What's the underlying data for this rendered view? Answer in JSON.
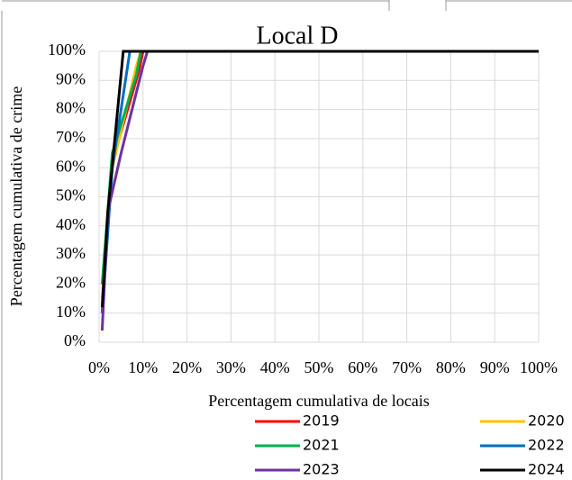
{
  "chart_data": {
    "type": "line",
    "title": "Local D",
    "x_label": "Percentagem cumulativa de locais",
    "y_label": "Percentagem cumulativa de crime",
    "xlim": [
      0,
      100
    ],
    "ylim": [
      0,
      100
    ],
    "xticks": [
      {
        "value": 0,
        "label": "0%"
      },
      {
        "value": 10,
        "label": "10%"
      },
      {
        "value": 20,
        "label": "20%"
      },
      {
        "value": 30,
        "label": "30%"
      },
      {
        "value": 40,
        "label": "40%"
      },
      {
        "value": 50,
        "label": "50%"
      },
      {
        "value": 60,
        "label": "60%"
      },
      {
        "value": 70,
        "label": "70%"
      },
      {
        "value": 80,
        "label": "80%"
      },
      {
        "value": 90,
        "label": "90%"
      },
      {
        "value": 100,
        "label": "100%"
      }
    ],
    "yticks": [
      {
        "value": 0,
        "label": "0%"
      },
      {
        "value": 10,
        "label": "10%"
      },
      {
        "value": 20,
        "label": "20%"
      },
      {
        "value": 30,
        "label": "30%"
      },
      {
        "value": 40,
        "label": "40%"
      },
      {
        "value": 50,
        "label": "50%"
      },
      {
        "value": 60,
        "label": "60%"
      },
      {
        "value": 70,
        "label": "70%"
      },
      {
        "value": 80,
        "label": "80%"
      },
      {
        "value": 90,
        "label": "90%"
      },
      {
        "value": 100,
        "label": "100%"
      }
    ],
    "grid": true,
    "series": [
      {
        "name": "2019",
        "color": "#ff0000",
        "x": [
          0.7,
          3,
          9,
          10,
          100
        ],
        "values": [
          10,
          62,
          93,
          100,
          100
        ]
      },
      {
        "name": "2020",
        "color": "#ffc000",
        "x": [
          0.7,
          3,
          8.5,
          9.5,
          100
        ],
        "values": [
          15,
          60,
          95,
          100,
          100
        ]
      },
      {
        "name": "2021",
        "color": "#00b050",
        "x": [
          0.7,
          3,
          8.5,
          9.5,
          100
        ],
        "values": [
          20,
          65,
          92,
          100,
          100
        ]
      },
      {
        "name": "2022",
        "color": "#0070c0",
        "x": [
          0.7,
          3,
          7,
          100
        ],
        "values": [
          10,
          60,
          100,
          100
        ]
      },
      {
        "name": "2023",
        "color": "#7030a0",
        "x": [
          0.7,
          2,
          5,
          10,
          11,
          100
        ],
        "values": [
          4,
          45,
          65,
          95,
          100,
          100
        ]
      },
      {
        "name": "2024",
        "color": "#000000",
        "x": [
          0.7,
          2,
          5.5,
          100
        ],
        "values": [
          12,
          45,
          100,
          100
        ]
      }
    ]
  }
}
